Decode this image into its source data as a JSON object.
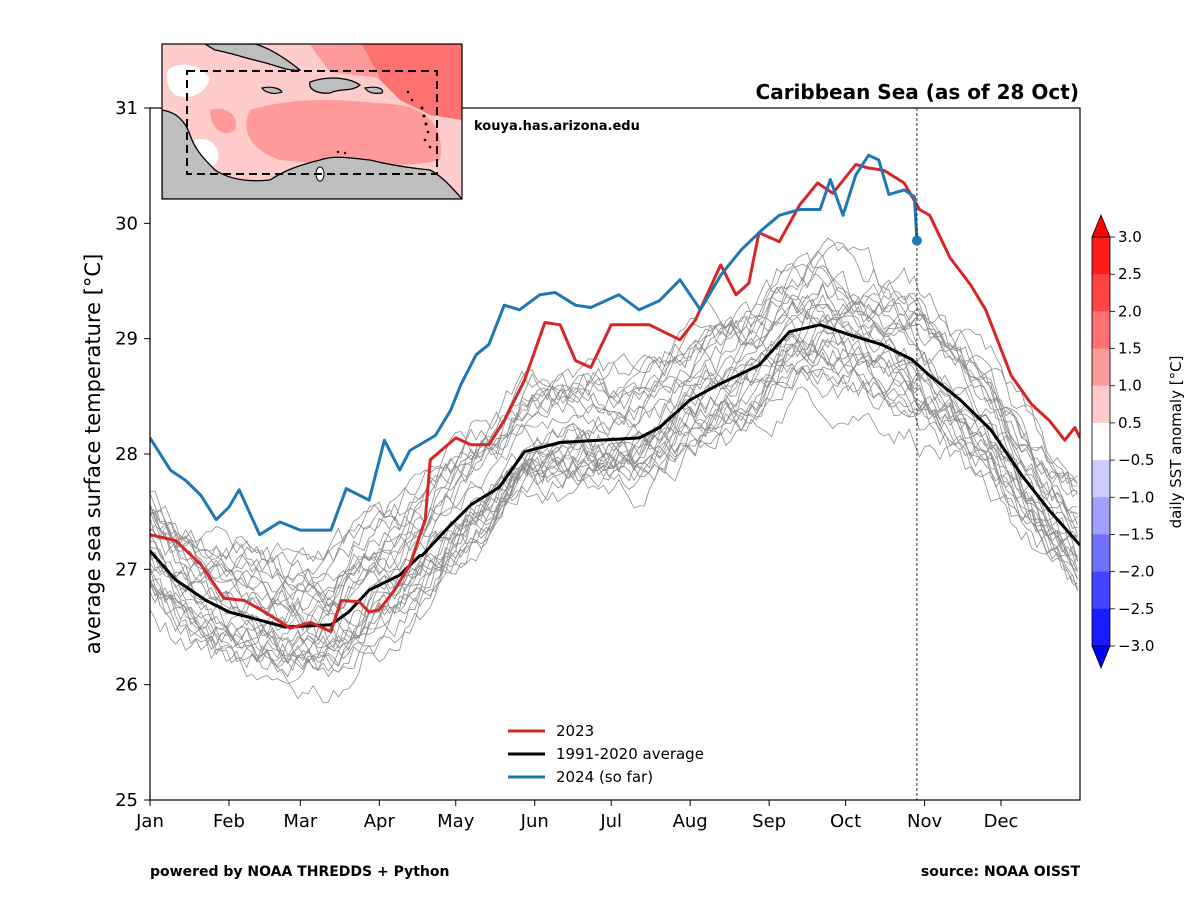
{
  "chart_data": {
    "type": "line",
    "title": "Caribbean Sea (as of 28 Oct)",
    "xlabel": "",
    "ylabel": "average sea surface temperature [°C]",
    "ylim": [
      25,
      31
    ],
    "xlim_days": [
      0,
      365
    ],
    "yticks": [
      25,
      26,
      27,
      28,
      29,
      30,
      31
    ],
    "xticks": [
      {
        "label": "Jan",
        "day": 0
      },
      {
        "label": "Feb",
        "day": 31
      },
      {
        "label": "Mar",
        "day": 59
      },
      {
        "label": "Apr",
        "day": 90
      },
      {
        "label": "May",
        "day": 120
      },
      {
        "label": "Jun",
        "day": 151
      },
      {
        "label": "Jul",
        "day": 181
      },
      {
        "label": "Aug",
        "day": 212
      },
      {
        "label": "Sep",
        "day": 243
      },
      {
        "label": "Oct",
        "day": 273
      },
      {
        "label": "Nov",
        "day": 304
      },
      {
        "label": "Dec",
        "day": 334
      }
    ],
    "current_date_marker": {
      "label": "28 Oct",
      "day": 301
    },
    "grid": false,
    "legend_position": "bottom-center",
    "series": [
      {
        "name": "2023",
        "color": "#d62728",
        "days": [
          0,
          10,
          20,
          29,
          37,
          45,
          55,
          63,
          71,
          75,
          82,
          86,
          90,
          96,
          102,
          108,
          110,
          120,
          126,
          133,
          139,
          147,
          155,
          161,
          167,
          173,
          181,
          196,
          208,
          214,
          224,
          230,
          235,
          239,
          247,
          255,
          262,
          268,
          277,
          282,
          288,
          296,
          302,
          306,
          314,
          322,
          328,
          338,
          346,
          353,
          359,
          363,
          365
        ],
        "values": [
          27.3,
          27.25,
          27.04,
          26.75,
          26.73,
          26.63,
          26.49,
          26.54,
          26.46,
          26.73,
          26.72,
          26.63,
          26.65,
          26.82,
          27.04,
          27.43,
          27.95,
          28.14,
          28.08,
          28.08,
          28.29,
          28.64,
          29.14,
          29.12,
          28.81,
          28.75,
          29.12,
          29.12,
          28.99,
          29.16,
          29.64,
          29.38,
          29.48,
          29.92,
          29.84,
          30.16,
          30.35,
          30.26,
          30.51,
          30.48,
          30.46,
          30.35,
          30.12,
          30.07,
          29.7,
          29.47,
          29.25,
          28.68,
          28.43,
          28.29,
          28.12,
          28.23,
          28.14
        ]
      },
      {
        "name": "1991-2020 average",
        "color": "#000000",
        "days": [
          0,
          10,
          22,
          31,
          43,
          53,
          63,
          71,
          78,
          86,
          98,
          106,
          106.8,
          116,
          126,
          137,
          147,
          161,
          176,
          192,
          200,
          212,
          223,
          239,
          251,
          263,
          275,
          287,
          299,
          306,
          318,
          330,
          342,
          353,
          365
        ],
        "values": [
          27.16,
          26.91,
          26.73,
          26.63,
          26.56,
          26.5,
          26.51,
          26.52,
          26.63,
          26.82,
          26.95,
          27.12,
          27.12,
          27.34,
          27.56,
          27.71,
          28.02,
          28.1,
          28.12,
          28.14,
          28.23,
          28.47,
          28.6,
          28.77,
          29.06,
          29.12,
          29.03,
          28.95,
          28.82,
          28.68,
          28.47,
          28.21,
          27.82,
          27.51,
          27.21
        ]
      },
      {
        "name": "2024 (so far)",
        "color": "#1f77b4",
        "days": [
          0,
          8,
          14,
          20,
          26,
          31,
          35,
          43,
          51,
          59,
          71,
          77,
          86,
          92,
          98,
          102,
          112,
          118,
          122,
          128,
          133,
          139,
          145,
          153,
          159,
          167,
          173,
          184,
          192,
          200,
          208,
          216,
          224,
          232,
          240,
          247,
          255,
          263,
          267,
          272,
          277,
          282,
          286,
          290,
          296,
          300,
          301
        ],
        "values": [
          28.14,
          27.86,
          27.77,
          27.64,
          27.43,
          27.54,
          27.69,
          27.3,
          27.41,
          27.34,
          27.34,
          27.7,
          27.6,
          28.12,
          27.86,
          28.03,
          28.16,
          28.38,
          28.6,
          28.86,
          28.95,
          29.29,
          29.25,
          29.38,
          29.4,
          29.29,
          29.27,
          29.38,
          29.25,
          29.33,
          29.51,
          29.25,
          29.55,
          29.77,
          29.94,
          30.07,
          30.12,
          30.12,
          30.38,
          30.07,
          30.42,
          30.59,
          30.55,
          30.25,
          30.29,
          30.23,
          29.85
        ]
      }
    ],
    "ensemble": {
      "name": "individual years 1991-2020",
      "color": "#8c8c8c",
      "count": 30,
      "spread_degC": 0.45
    },
    "colorbar": {
      "label": "daily SST anomaly [°C]",
      "ticks": [
        "3.0",
        "2.5",
        "2.0",
        "1.5",
        "1.0",
        "0.5",
        "−0.5",
        "−1.0",
        "−1.5",
        "−2.0",
        "−2.5",
        "−3.0"
      ],
      "levels": [
        {
          "range": "2.5 to 3.0",
          "color": "#ff1a1a"
        },
        {
          "range": "2.0 to 2.5",
          "color": "#ff4444"
        },
        {
          "range": "1.5 to 2.0",
          "color": "#ff7070"
        },
        {
          "range": "1.0 to 1.5",
          "color": "#ff9a9a"
        },
        {
          "range": "0.5 to 1.0",
          "color": "#ffcccc"
        },
        {
          "range": "-0.5 to 0.5",
          "color": "#ffffff"
        },
        {
          "range": "-1.0 to -0.5",
          "color": "#ccccff"
        },
        {
          "range": "-1.5 to -1.0",
          "color": "#a0a0ff"
        },
        {
          "range": "-2.0 to -1.5",
          "color": "#7070ff"
        },
        {
          "range": "-2.5 to -2.0",
          "color": "#4444ff"
        },
        {
          "range": "-3.0 to -2.5",
          "color": "#1a1aff"
        }
      ],
      "extend_max_color": "#ff0000",
      "extend_min_color": "#0000ff"
    },
    "inset_map": {
      "region": "Caribbean Sea",
      "land_color": "#bebebe",
      "box_style": "dashed"
    }
  },
  "annotations": {
    "credit": "kouya.has.arizona.edu",
    "footer_left": "powered by NOAA THREDDS + Python",
    "footer_right": "source: NOAA OISST"
  }
}
